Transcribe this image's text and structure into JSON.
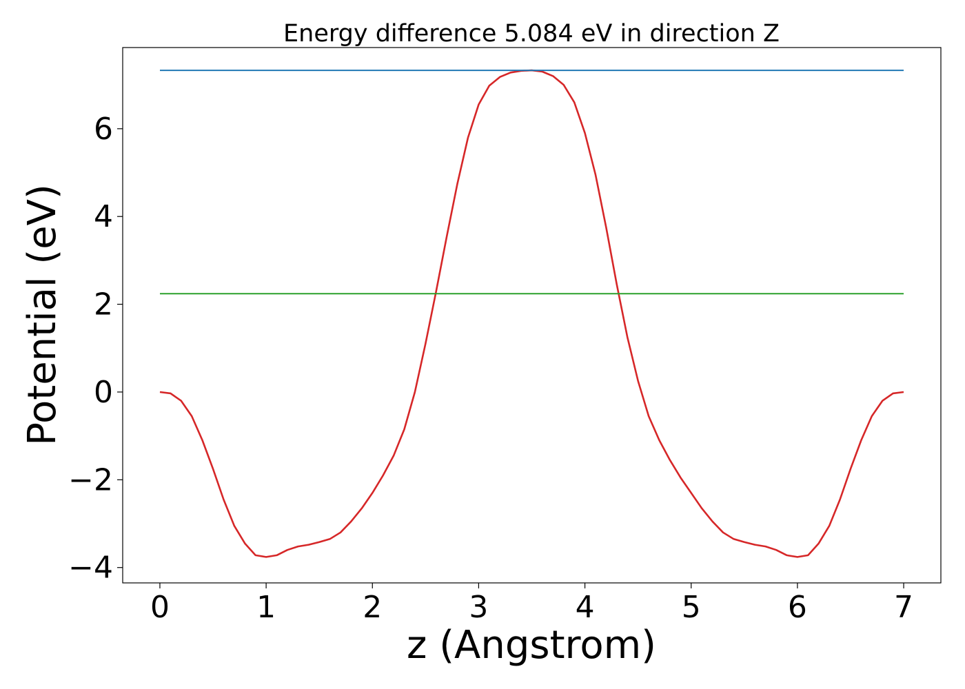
{
  "chart_data": {
    "type": "line",
    "title": "Energy difference 5.084 eV in direction Z",
    "xlabel": "z (Angstrom)",
    "ylabel": "Potential (eV)",
    "xlim": [
      -0.35,
      7.35
    ],
    "ylim": [
      -4.35,
      7.85
    ],
    "xticks": [
      0,
      1,
      2,
      3,
      4,
      5,
      6,
      7
    ],
    "xtick_labels": [
      "0",
      "1",
      "2",
      "3",
      "4",
      "5",
      "6",
      "7"
    ],
    "yticks": [
      -4,
      -2,
      0,
      2,
      4,
      6
    ],
    "ytick_labels": [
      "−4",
      "−2",
      "0",
      "2",
      "4",
      "6"
    ],
    "grid": false,
    "legend": "none",
    "series": [
      {
        "color": "#d62728",
        "x": [
          0,
          0.1,
          0.2,
          0.3,
          0.4,
          0.5,
          0.6,
          0.7,
          0.8,
          0.9,
          1.0,
          1.1,
          1.2,
          1.3,
          1.4,
          1.5,
          1.6,
          1.7,
          1.8,
          1.9,
          2.0,
          2.1,
          2.2,
          2.3,
          2.4,
          2.5,
          2.6,
          2.7,
          2.8,
          2.9,
          3.0,
          3.1,
          3.2,
          3.3,
          3.4,
          3.5,
          3.6,
          3.7,
          3.8,
          3.9,
          4.0,
          4.1,
          4.2,
          4.3,
          4.4,
          4.5,
          4.6,
          4.7,
          4.8,
          4.9,
          5.0,
          5.1,
          5.2,
          5.3,
          5.4,
          5.5,
          5.6,
          5.7,
          5.8,
          5.9,
          6.0,
          6.1,
          6.2,
          6.3,
          6.4,
          6.5,
          6.6,
          6.7,
          6.8,
          6.9,
          7.0
        ],
        "y": [
          0.0,
          -0.03,
          -0.2,
          -0.55,
          -1.1,
          -1.75,
          -2.45,
          -3.05,
          -3.45,
          -3.72,
          -3.76,
          -3.72,
          -3.6,
          -3.52,
          -3.48,
          -3.42,
          -3.35,
          -3.2,
          -2.95,
          -2.65,
          -2.3,
          -1.9,
          -1.45,
          -0.85,
          0.0,
          1.1,
          2.3,
          3.55,
          4.75,
          5.8,
          6.55,
          6.98,
          7.18,
          7.28,
          7.32,
          7.33,
          7.3,
          7.2,
          7.0,
          6.6,
          5.9,
          4.95,
          3.75,
          2.45,
          1.25,
          0.25,
          -0.55,
          -1.1,
          -1.55,
          -1.95,
          -2.3,
          -2.65,
          -2.95,
          -3.2,
          -3.35,
          -3.42,
          -3.48,
          -3.52,
          -3.6,
          -3.72,
          -3.76,
          -3.72,
          -3.45,
          -3.05,
          -2.45,
          -1.75,
          -1.1,
          -0.55,
          -0.2,
          -0.03,
          0.0
        ]
      },
      {
        "color": "#1f77b4",
        "x": [
          0,
          7
        ],
        "y": [
          7.33,
          7.33
        ]
      },
      {
        "color": "#2ca02c",
        "x": [
          0,
          7
        ],
        "y": [
          2.24,
          2.24
        ]
      }
    ]
  }
}
